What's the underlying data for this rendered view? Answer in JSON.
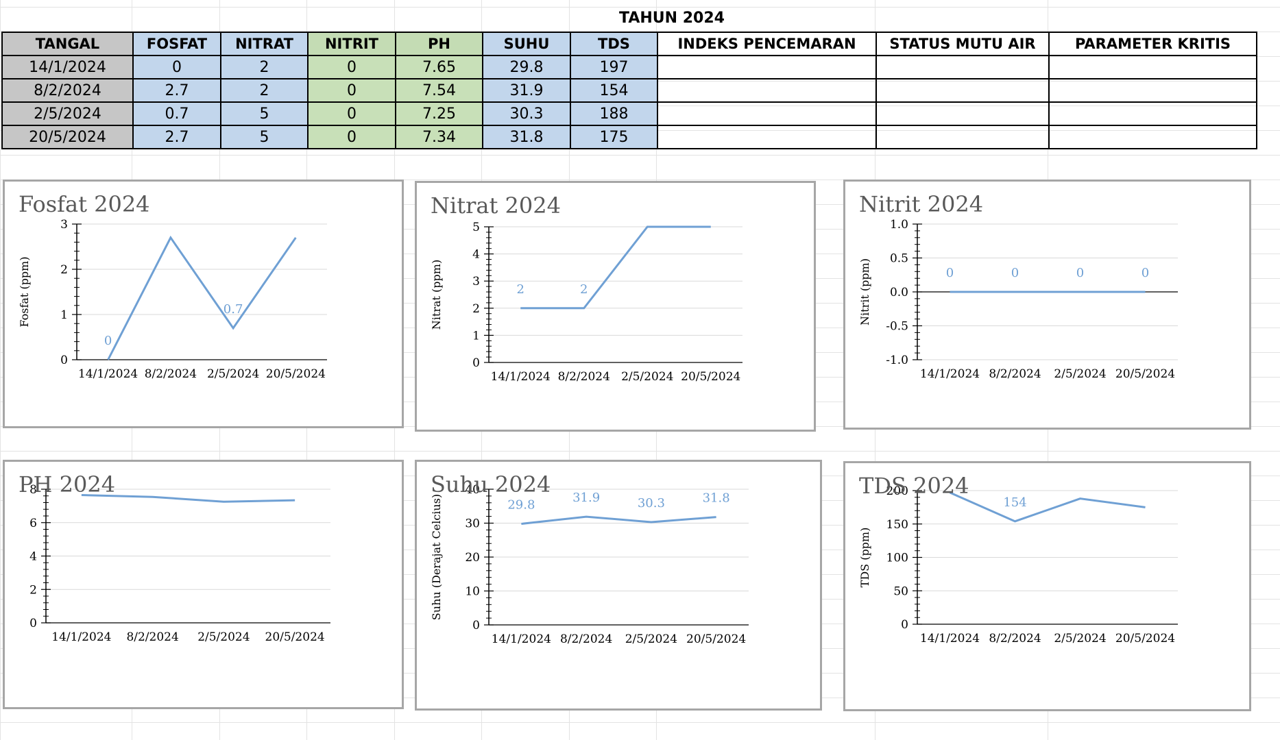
{
  "sheet": {
    "title": "TAHUN 2024",
    "columns": [
      "TANGAL",
      "FOSFAT",
      "NITRAT",
      "NITRIT",
      "PH",
      "SUHU",
      "TDS",
      "INDEKS PENCEMARAN",
      "STATUS MUTU AIR",
      "PARAMETER KRITIS"
    ],
    "rows": [
      [
        "14/1/2024",
        "0",
        "2",
        "0",
        "7.65",
        "29.8",
        "197",
        "",
        "",
        ""
      ],
      [
        "8/2/2024",
        "2.7",
        "2",
        "0",
        "7.54",
        "31.9",
        "154",
        "",
        "",
        ""
      ],
      [
        "2/5/2024",
        "0.7",
        "5",
        "0",
        "7.25",
        "30.3",
        "188",
        "",
        "",
        ""
      ],
      [
        "20/5/2024",
        "2.7",
        "5",
        "0",
        "7.34",
        "31.8",
        "175",
        "",
        "",
        ""
      ]
    ],
    "colors": {
      "gray_cell": "#c6c6c6",
      "blue_cell": "#c2d6ec",
      "green_cell": "#c8e0b8",
      "series_line": "#6fa0d4",
      "data_label": "#6fa0d4"
    }
  },
  "chart_data": [
    {
      "type": "line",
      "title": "Fosfat 2024",
      "ylabel": "Fosfat (ppm)",
      "categories": [
        "14/1/2024",
        "8/2/2024",
        "2/5/2024",
        "20/5/2024"
      ],
      "values": [
        0,
        2.7,
        0.7,
        2.7
      ],
      "ylim": [
        0,
        3
      ],
      "yticks": [
        "0",
        "1",
        "2",
        "3"
      ],
      "data_labels": [
        "0",
        "",
        "0.7",
        ""
      ],
      "grid": true
    },
    {
      "type": "line",
      "title": "Nitrat 2024",
      "ylabel": "Nitrat (ppm)",
      "categories": [
        "14/1/2024",
        "8/2/2024",
        "2/5/2024",
        "20/5/2024"
      ],
      "values": [
        2,
        2,
        5,
        5
      ],
      "ylim": [
        0,
        5
      ],
      "yticks": [
        "0",
        "1",
        "2",
        "3",
        "4",
        "5"
      ],
      "data_labels": [
        "2",
        "2",
        "",
        ""
      ],
      "grid": true
    },
    {
      "type": "line",
      "title": "Nitrit 2024",
      "ylabel": "Nitrit (ppm)",
      "categories": [
        "14/1/2024",
        "8/2/2024",
        "2/5/2024",
        "20/5/2024"
      ],
      "values": [
        0,
        0,
        0,
        0
      ],
      "ylim": [
        -1,
        1
      ],
      "yticks": [
        "-1.0",
        "-0.5",
        "0.0",
        "0.5",
        "1.0"
      ],
      "data_labels": [
        "0",
        "0",
        "0",
        "0"
      ],
      "grid": true
    },
    {
      "type": "line",
      "title": "PH 2024",
      "ylabel": "",
      "categories": [
        "14/1/2024",
        "8/2/2024",
        "2/5/2024",
        "20/5/2024"
      ],
      "values": [
        7.65,
        7.54,
        7.25,
        7.34
      ],
      "ylim": [
        0,
        8
      ],
      "yticks": [
        "0",
        "2",
        "4",
        "6",
        "8"
      ],
      "data_labels": [
        "",
        "",
        "",
        ""
      ],
      "grid": true
    },
    {
      "type": "line",
      "title": "Suhu 2024",
      "ylabel": "Suhu (Derajat Celcius)",
      "categories": [
        "14/1/2024",
        "8/2/2024",
        "2/5/2024",
        "20/5/2024"
      ],
      "values": [
        29.8,
        31.9,
        30.3,
        31.8
      ],
      "ylim": [
        0,
        40
      ],
      "yticks": [
        "0",
        "10",
        "20",
        "30",
        "40"
      ],
      "data_labels": [
        "29.8",
        "31.9",
        "30.3",
        "31.8"
      ],
      "grid": true
    },
    {
      "type": "line",
      "title": "TDS 2024",
      "ylabel": "TDS (ppm)",
      "categories": [
        "14/1/2024",
        "8/2/2024",
        "2/5/2024",
        "20/5/2024"
      ],
      "values": [
        197,
        154,
        188,
        175
      ],
      "ylim": [
        0,
        200
      ],
      "yticks": [
        "0",
        "50",
        "100",
        "150",
        "200"
      ],
      "data_labels": [
        "",
        "154",
        "",
        ""
      ],
      "grid": true
    }
  ]
}
